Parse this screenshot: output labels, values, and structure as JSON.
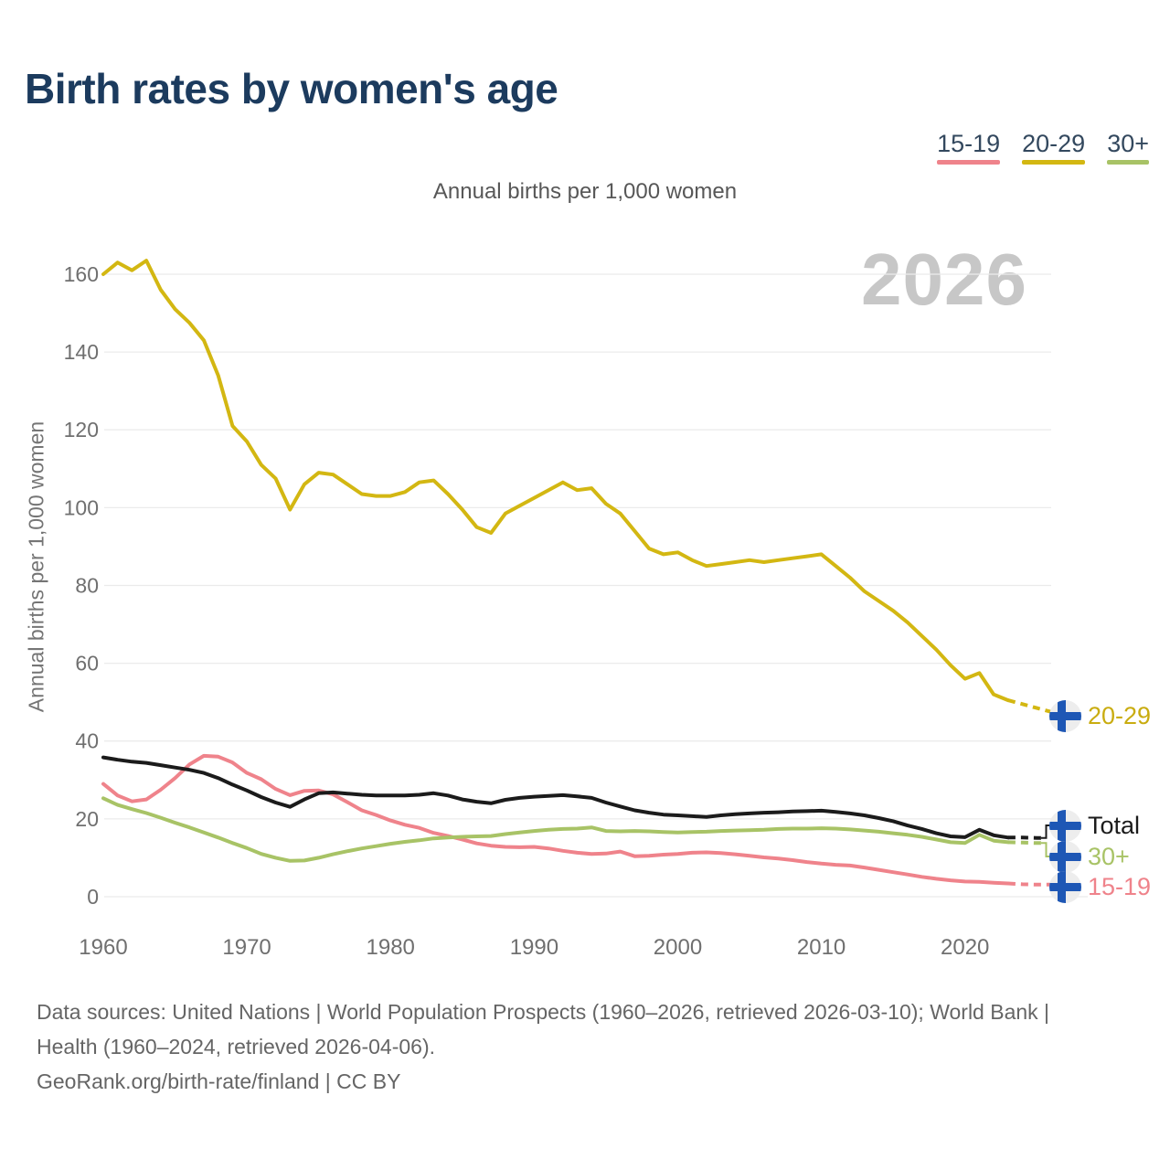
{
  "header": {
    "title": "Birth rates by women's age"
  },
  "legend": {
    "items": [
      {
        "label": "15-19",
        "color": "#ef838b"
      },
      {
        "label": "20-29",
        "color": "#d3b712"
      },
      {
        "label": "30+",
        "color": "#a8c366"
      }
    ]
  },
  "footer": {
    "sources": "Data sources: United Nations | World Population Prospects (1960–2026, retrieved 2026-03-10); World Bank | Health (1960–2024, retrieved 2026-04-06).",
    "attribution": "GeoRank.org/birth-rate/finland | CC BY"
  },
  "chart_data": {
    "type": "line",
    "title": "Birth rates by women's age",
    "subtitle": "Annual births per 1,000 women",
    "ylabel": "Annual births per 1,000 women",
    "watermark": "2026",
    "grid": "horizontal",
    "legend_position": "top-right",
    "x_range": [
      1960,
      2026
    ],
    "ylim": [
      0,
      160
    ],
    "y_ticks": [
      0,
      20,
      40,
      60,
      80,
      100,
      120,
      140,
      160
    ],
    "x_ticks": [
      1960,
      1970,
      1980,
      1990,
      2000,
      2010,
      2020
    ],
    "dash_from_year": 2023,
    "years": [
      1960,
      1961,
      1962,
      1963,
      1964,
      1965,
      1966,
      1967,
      1968,
      1969,
      1970,
      1971,
      1972,
      1973,
      1974,
      1975,
      1976,
      1977,
      1978,
      1979,
      1980,
      1981,
      1982,
      1983,
      1984,
      1985,
      1986,
      1987,
      1988,
      1989,
      1990,
      1991,
      1992,
      1993,
      1994,
      1995,
      1996,
      1997,
      1998,
      1999,
      2000,
      2001,
      2002,
      2003,
      2004,
      2005,
      2006,
      2007,
      2008,
      2009,
      2010,
      2011,
      2012,
      2013,
      2014,
      2015,
      2016,
      2017,
      2018,
      2019,
      2020,
      2021,
      2022,
      2023,
      2024,
      2025,
      2026
    ],
    "series": [
      {
        "name": "15-19",
        "color": "#ef838b",
        "values": [
          29,
          26,
          24.5,
          25,
          27.5,
          30.5,
          34,
          36.2,
          36,
          34.5,
          31.8,
          30.2,
          27.7,
          26.1,
          27.2,
          27.3,
          26.3,
          24.3,
          22.2,
          21,
          19.6,
          18.5,
          17.7,
          16.4,
          15.6,
          14.7,
          13.7,
          13.1,
          12.8,
          12.7,
          12.8,
          12.4,
          11.8,
          11.3,
          11,
          11.1,
          11.6,
          10.4,
          10.5,
          10.8,
          11,
          11.3,
          11.4,
          11.2,
          10.9,
          10.5,
          10.1,
          9.8,
          9.4,
          8.9,
          8.5,
          8.2,
          8,
          7.5,
          6.9,
          6.3,
          5.7,
          5.1,
          4.6,
          4.2,
          3.9,
          3.8,
          3.6,
          3.4,
          3.2,
          3.1,
          3.1
        ]
      },
      {
        "name": "30+",
        "color": "#a8c366",
        "values": [
          25.3,
          23.6,
          22.5,
          21.5,
          20.3,
          19,
          17.8,
          16.5,
          15.2,
          13.8,
          12.5,
          11,
          10,
          9.2,
          9.3,
          10,
          10.9,
          11.7,
          12.4,
          13,
          13.6,
          14.1,
          14.5,
          15,
          15.2,
          15.4,
          15.5,
          15.6,
          16.1,
          16.5,
          16.9,
          17.2,
          17.4,
          17.5,
          17.8,
          16.9,
          16.8,
          16.9,
          16.8,
          16.6,
          16.5,
          16.6,
          16.7,
          16.9,
          17,
          17.1,
          17.2,
          17.4,
          17.5,
          17.5,
          17.6,
          17.5,
          17.3,
          17,
          16.7,
          16.3,
          15.9,
          15.4,
          14.7,
          14,
          13.8,
          15.9,
          14.4,
          14,
          13.9,
          13.8,
          13.8
        ]
      },
      {
        "name": "Total",
        "color": "#1b1b1b",
        "values": [
          35.8,
          35.2,
          34.7,
          34.4,
          33.8,
          33.2,
          32.6,
          31.8,
          30.5,
          28.8,
          27.3,
          25.6,
          24.2,
          23.1,
          25,
          26.6,
          26.8,
          26.5,
          26.2,
          26,
          26,
          26,
          26.2,
          26.6,
          26,
          25,
          24.4,
          24,
          24.9,
          25.4,
          25.7,
          25.9,
          26.1,
          25.8,
          25.4,
          24.2,
          23.2,
          22.2,
          21.6,
          21.1,
          20.9,
          20.7,
          20.5,
          20.9,
          21.2,
          21.4,
          21.6,
          21.7,
          21.9,
          22,
          22.1,
          21.8,
          21.4,
          20.9,
          20.2,
          19.4,
          18.3,
          17.4,
          16.3,
          15.5,
          15.3,
          17.2,
          15.8,
          15.2,
          15.2,
          15.1,
          15.1
        ]
      },
      {
        "name": "20-29",
        "color": "#d3b712",
        "values": [
          160,
          163,
          161,
          163.5,
          156,
          151,
          147.5,
          143,
          134,
          121,
          117,
          111,
          107.5,
          99.5,
          106,
          109,
          108.5,
          106,
          103.5,
          103,
          103,
          104,
          106.5,
          107,
          103.5,
          99.5,
          95,
          93.5,
          98.5,
          100.5,
          102.5,
          104.5,
          106.5,
          104.5,
          105,
          101,
          98.5,
          94,
          89.5,
          88,
          88.5,
          86.5,
          85,
          85.5,
          86,
          86.5,
          86,
          86.5,
          87,
          87.5,
          88,
          85,
          82,
          78.5,
          76,
          73.5,
          70.5,
          67,
          63.5,
          59.5,
          56,
          57.5,
          52,
          50.5,
          49.5,
          48.5,
          47.5
        ]
      }
    ],
    "end_labels": [
      {
        "label": "20-29",
        "color": "#c9ac10"
      },
      {
        "label": "Total",
        "color": "#1b1b1b"
      },
      {
        "label": "30+",
        "color": "#a8c366"
      },
      {
        "label": "15-19",
        "color": "#ef838b"
      }
    ],
    "marker_icon": "finland-flag-icon"
  }
}
